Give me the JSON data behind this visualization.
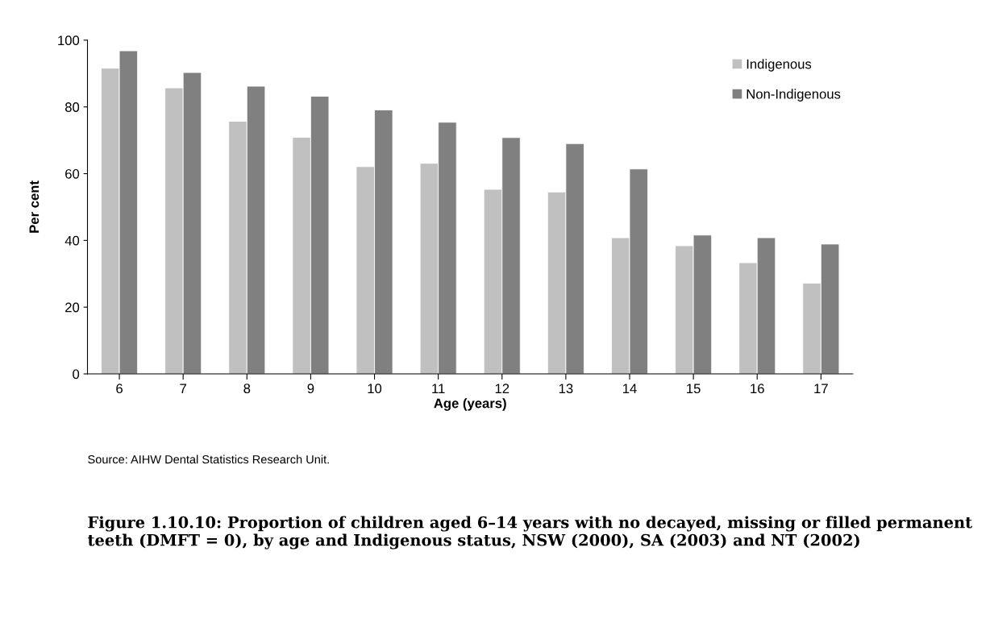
{
  "chart_data": {
    "type": "bar",
    "title": "Figure 1.10.10: Proportion of children aged 6–14 years with no decayed, missing or filled permanent teeth (DMFT = 0), by age and Indigenous status, NSW (2000), SA (2003) and NT (2002)",
    "xlabel": "Age (years)",
    "ylabel": "Per cent",
    "categories": [
      "6",
      "7",
      "8",
      "9",
      "10",
      "11",
      "12",
      "13",
      "14",
      "15",
      "16",
      "17"
    ],
    "series": [
      {
        "name": "Indigenous",
        "color": "#c0c0c0",
        "values": [
          91.6,
          85.7,
          75.7,
          70.9,
          62.1,
          63.1,
          55.3,
          54.5,
          40.8,
          38.4,
          33.3,
          27.2
        ]
      },
      {
        "name": "Non-Indigenous",
        "color": "#808080",
        "values": [
          96.8,
          90.3,
          86.2,
          83.2,
          79.1,
          75.4,
          70.8,
          69.0,
          61.4,
          41.6,
          40.8,
          38.9
        ]
      }
    ],
    "ylim": [
      0,
      100
    ],
    "yticks": [
      0,
      20,
      40,
      60,
      80,
      100
    ],
    "legend": "top right",
    "grid": false,
    "annotations": [
      "Source: AIHW Dental Statistics Research Unit."
    ]
  }
}
